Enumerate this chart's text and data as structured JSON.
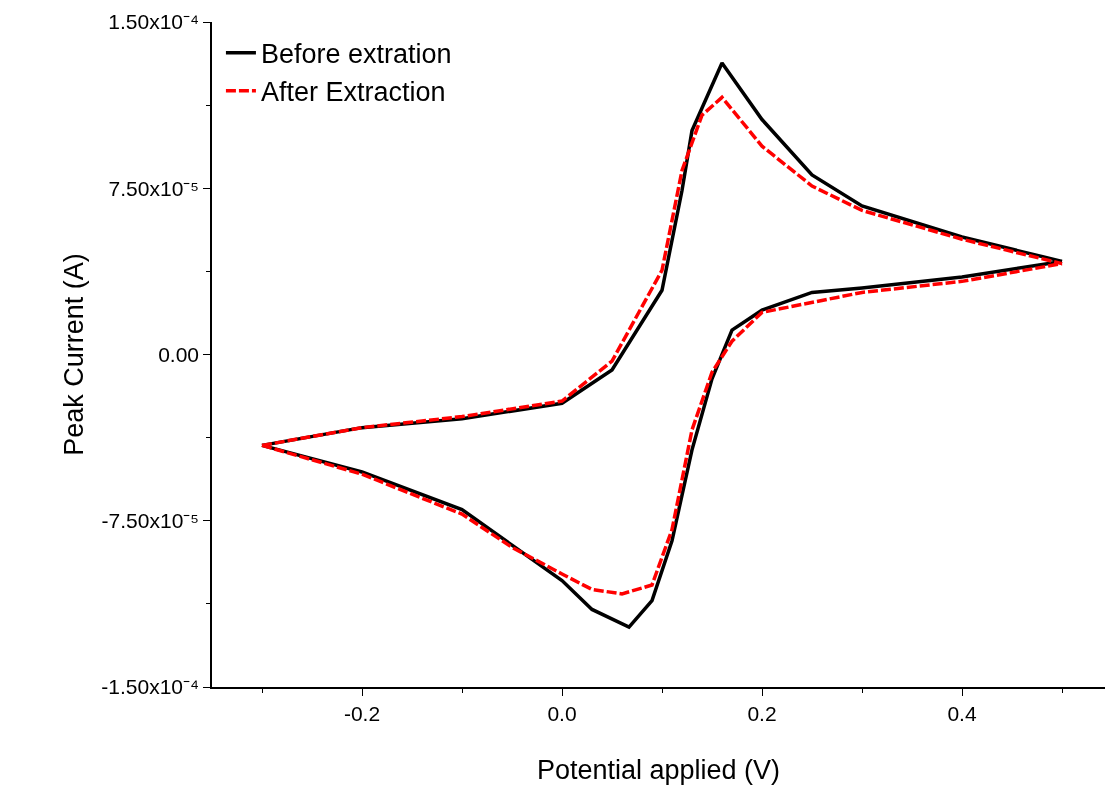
{
  "chart_data": {
    "type": "line",
    "xlabel": "Potential applied (V)",
    "ylabel": "Peak Current (A)",
    "xlim": [
      -0.35,
      0.543
    ],
    "ylim": [
      -0.00015,
      0.00015
    ],
    "xticks": [
      {
        "value": -0.3,
        "label": null
      },
      -0.2,
      {
        "value": -0.1,
        "label": null
      },
      {
        "value": 0,
        "label": "0.0"
      },
      {
        "value": 0.1,
        "label": null
      },
      0.2,
      {
        "value": 0.3,
        "label": null
      },
      0.4,
      {
        "value": 0.5,
        "label": null
      }
    ],
    "yticks": [
      {
        "value": -0.00015,
        "label": "-1.50x10⁻⁴"
      },
      {
        "value": -0.0001125,
        "label": null
      },
      {
        "value": -7.5e-05,
        "label": "-7.50x10⁻⁵"
      },
      {
        "value": -3.75e-05,
        "label": null
      },
      {
        "value": 0,
        "label": "0.00"
      },
      {
        "value": 3.75e-05,
        "label": null
      },
      {
        "value": 7.5e-05,
        "label": "7.50x10⁻⁵"
      },
      {
        "value": 0.0001125,
        "label": null
      },
      {
        "value": 0.00015,
        "label": "1.50x10⁻⁴"
      }
    ],
    "grid": false,
    "legend": "top left",
    "marker": "none",
    "series": [
      {
        "name": "Before extration",
        "color": "#000000",
        "line_style": "solid",
        "x": [
          -0.3,
          -0.2,
          -0.1,
          0,
          0.05,
          0.1,
          0.12,
          0.13,
          0.16,
          0.2,
          0.25,
          0.3,
          0.4,
          0.5
        ],
        "values": [
          -4.1e-05,
          -3.3e-05,
          -2.9e-05,
          -2.2e-05,
          -7e-06,
          2.9e-05,
          7.4e-05,
          0.000101,
          0.0001315,
          0.000106,
          8.1e-05,
          6.7e-05,
          5.3e-05,
          4.2e-05
        ]
      },
      {
        "color": "#000000",
        "line_style": "solid",
        "x": [
          -0.3,
          -0.2,
          -0.1,
          -0.05,
          0,
          0.03,
          0.067,
          0.09,
          0.11,
          0.13,
          0.15,
          0.17,
          0.2,
          0.25,
          0.3,
          0.4,
          0.5
        ],
        "values": [
          -4.1e-05,
          -5.3e-05,
          -7e-05,
          -8.6e-05,
          -0.000102,
          -0.000115,
          -0.000123,
          -0.000111,
          -8.4e-05,
          -4.3e-05,
          -1.1e-05,
          1.1e-05,
          2e-05,
          2.8e-05,
          3e-05,
          3.5e-05,
          4.2e-05
        ]
      },
      {
        "name": "After Extraction",
        "color": "#ff0000",
        "line_style": "dashed",
        "x": [
          -0.3,
          -0.2,
          -0.1,
          0,
          0.05,
          0.1,
          0.12,
          0.14,
          0.16,
          0.2,
          0.25,
          0.3,
          0.4,
          0.5
        ],
        "values": [
          -4.1e-05,
          -3.3e-05,
          -2.8e-05,
          -2.1e-05,
          -3e-06,
          3.8e-05,
          8.3e-05,
          0.000108,
          0.000116,
          9.4e-05,
          7.6e-05,
          6.5e-05,
          5.2e-05,
          4.1e-05
        ]
      },
      {
        "color": "#ff0000",
        "line_style": "dashed",
        "x": [
          -0.3,
          -0.2,
          -0.1,
          -0.05,
          0,
          0.03,
          0.06,
          0.09,
          0.11,
          0.13,
          0.15,
          0.17,
          0.2,
          0.3,
          0.4,
          0.5
        ],
        "values": [
          -4.1e-05,
          -5.4e-05,
          -7.2e-05,
          -8.7e-05,
          -9.9e-05,
          -0.000106,
          -0.000108,
          -0.000104,
          -7.9e-05,
          -3.4e-05,
          -8e-06,
          6e-06,
          1.9e-05,
          2.8e-05,
          3.3e-05,
          4.1e-05
        ]
      }
    ]
  }
}
